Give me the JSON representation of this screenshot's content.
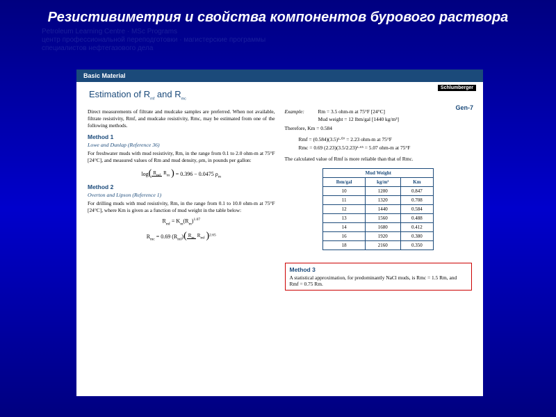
{
  "slide": {
    "title": "Резистивиметрия и свойства компонентов бурового раствора"
  },
  "watermark": {
    "line1": "Petroleum Learning Centre · MSc Programs",
    "line2": "центр профессиональной переподготовки · магистерские программы",
    "line3": "специалистов нефтегазового дела"
  },
  "doc": {
    "header_label": "Basic Material",
    "logo": "Schlumberger",
    "subtitle": "Estimation of Rmf and Rmc",
    "gen": "Gen-7",
    "intro": "Direct measurements of filtrate and mudcake samples are preferred. When not available, filtrate resistivity, Rmf, and mudcake resistivity, Rmc, may be estimated from one of the following methods.",
    "m1": {
      "title": "Method 1",
      "ref": "Lowe and Dunlap (Reference 36)",
      "text": "For freshwater muds with mud resistivity, Rm, in the range from 0.1 to 2.0 ohm-m at 75°F [24°C], and measured values of Rm and mud density, ρm, in pounds per gallon:",
      "formula_rhs": "= 0.396 − 0.0475 ρ",
      "formula_sub": "m"
    },
    "m2": {
      "title": "Method 2",
      "ref": "Overton and Lipson (Reference 1)",
      "text": "For drilling muds with mud resistivity, Rm, in the range from 0.1 to 10.0 ohm-m at 75°F [24°C], where Km is given as a function of mud weight in the table below:",
      "f1_lhs": "Rmf = Km(Rm)",
      "f1_sup": "1.07",
      "f2_lhs": "Rmc = 0.69 (Rmf)",
      "f2_sup": "2.65"
    },
    "example": {
      "label": "Example:",
      "l1": "Rm = 3.5 ohm-m at 75°F [24°C]",
      "l2": "Mud weight = 12 lbm/gal [1440 kg/m³]",
      "l3": "Therefore, Km = 0.584",
      "l4": "Rmf = (0.584)(3.5)¹·⁰⁷ = 2.23 ohm-m at 75°F",
      "l5": "Rmc = 0.69 (2.23)(3.5/2.23)²·⁶⁵ = 5.07 ohm-m at 75°F",
      "note": "The calculated value of Rmf is more reliable than that of Rmc."
    },
    "table": {
      "caption": "Mud Weight",
      "cols": [
        "lbm/gal",
        "kg/m³",
        "Km"
      ],
      "rows": [
        [
          "10",
          "1200",
          "0.847"
        ],
        [
          "11",
          "1320",
          "0.708"
        ],
        [
          "12",
          "1440",
          "0.584"
        ],
        [
          "13",
          "1560",
          "0.488"
        ],
        [
          "14",
          "1680",
          "0.412"
        ],
        [
          "16",
          "1920",
          "0.380"
        ],
        [
          "18",
          "2160",
          "0.350"
        ]
      ]
    },
    "m3": {
      "title": "Method 3",
      "text": "A statistical approximation, for predominantly NaCl muds, is Rmc = 1.5 Rm, and Rmf = 0.75 Rm."
    }
  }
}
